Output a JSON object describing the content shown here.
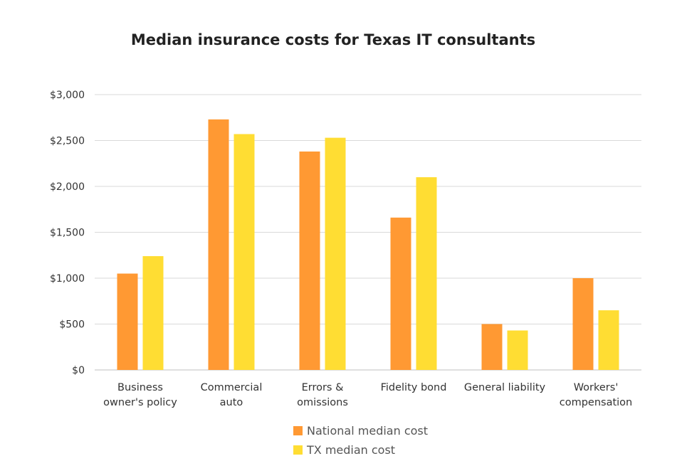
{
  "chart_data": {
    "type": "bar",
    "title": "Median insurance costs for Texas IT consultants",
    "categories": [
      [
        "Business",
        "owner's policy"
      ],
      [
        "Commercial",
        "auto"
      ],
      [
        "Errors &",
        "omissions"
      ],
      [
        "Fidelity bond"
      ],
      [
        "General liability"
      ],
      [
        "Workers'",
        "compensation"
      ]
    ],
    "series": [
      {
        "name": "National median cost",
        "color": "#FF9933",
        "values": [
          1050,
          2730,
          2380,
          1660,
          500,
          1000
        ]
      },
      {
        "name": "TX median cost",
        "color": "#FFDD33",
        "values": [
          1240,
          2570,
          2530,
          2100,
          430,
          650
        ]
      }
    ],
    "ylim": [
      0,
      3000
    ],
    "yticks": [
      0,
      500,
      1000,
      1500,
      2000,
      2500,
      3000
    ],
    "ytick_labels": [
      "$0",
      "$500",
      "$1,000",
      "$1,500",
      "$2,000",
      "$2,500",
      "$3,000"
    ],
    "xlabel": "",
    "ylabel": "",
    "grid": true,
    "legend_position": "bottom"
  }
}
